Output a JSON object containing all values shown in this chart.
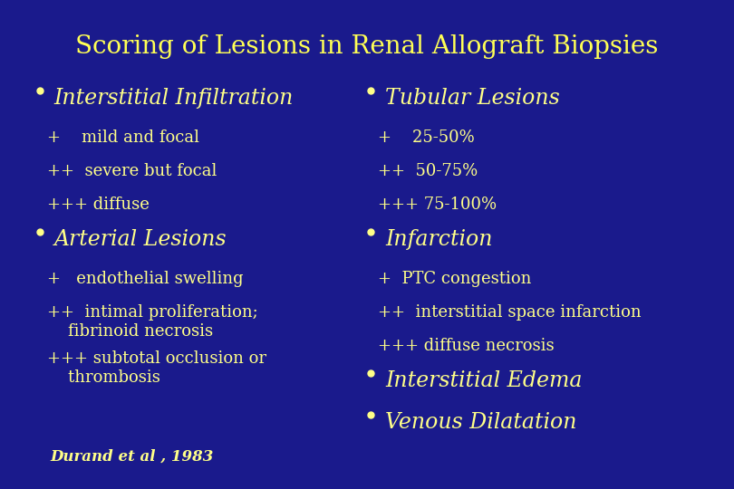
{
  "title": "Scoring of Lesions in Renal Allograft Biopsies",
  "title_color": "#FFFF55",
  "title_fontsize": 20,
  "background_color": "#1a1a8c",
  "text_color": "#FFFF88",
  "bullet_color": "#FFFF88",
  "heading_fontsize": 17,
  "body_fontsize": 13,
  "citation_fontsize": 12,
  "citation": "Durand et al , 1983",
  "left_column": [
    {
      "type": "bullet",
      "text": "Interstitial Infiltration"
    },
    {
      "type": "body",
      "text": "+    mild and focal"
    },
    {
      "type": "body",
      "text": "++  severe but focal"
    },
    {
      "type": "body",
      "text": "+++ diffuse"
    },
    {
      "type": "bullet",
      "text": "Arterial Lesions"
    },
    {
      "type": "body",
      "text": "+   endothelial swelling"
    },
    {
      "type": "body2",
      "text": "++  intimal proliferation;\n    fibrinoid necrosis"
    },
    {
      "type": "body2",
      "text": "+++ subtotal occlusion or\n    thrombosis"
    }
  ],
  "right_column": [
    {
      "type": "bullet",
      "text": "Tubular Lesions"
    },
    {
      "type": "body",
      "text": "+    25-50%"
    },
    {
      "type": "body",
      "text": "++  50-75%"
    },
    {
      "type": "body",
      "text": "+++ 75-100%"
    },
    {
      "type": "bullet",
      "text": "Infarction"
    },
    {
      "type": "body",
      "text": "+  PTC congestion"
    },
    {
      "type": "body",
      "text": "++  interstitial space infarction"
    },
    {
      "type": "body",
      "text": "+++ diffuse necrosis"
    },
    {
      "type": "bullet",
      "text": "Interstitial Edema"
    },
    {
      "type": "bullet",
      "text": "Venous Dilatation"
    }
  ]
}
